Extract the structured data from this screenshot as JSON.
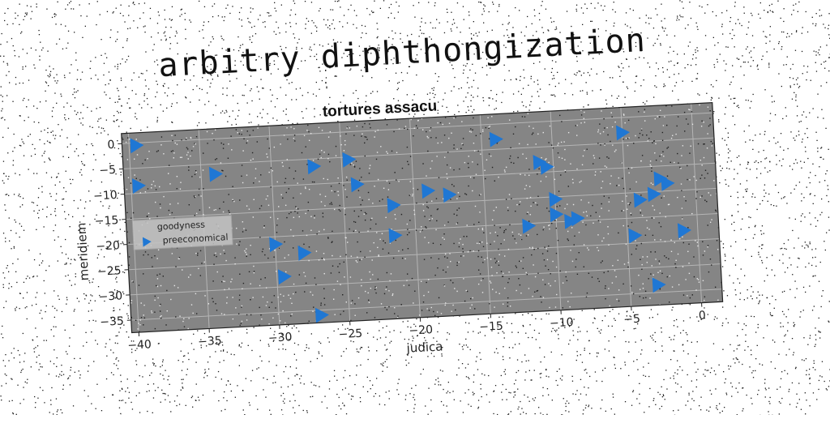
{
  "page": {
    "suptitle": "arbitry diphthongization"
  },
  "chart_data": {
    "type": "scatter",
    "title": "tortures assacu",
    "xlabel": "judica",
    "ylabel": "meridiem",
    "xlim": [
      -40.5,
      1.5
    ],
    "ylim": [
      -37.5,
      2
    ],
    "xticks": [
      -40,
      -35,
      -30,
      -25,
      -20,
      -15,
      -10,
      -5,
      0
    ],
    "yticks": [
      0,
      -5,
      -10,
      -15,
      -20,
      -25,
      -30,
      -35
    ],
    "xtick_labels": [
      "−40",
      "−35",
      "−30",
      "−25",
      "−20",
      "−15",
      "−10",
      "−5",
      "0"
    ],
    "ytick_labels": [
      "0",
      "−5",
      "−10",
      "−15",
      "−20",
      "−25",
      "−30",
      "−35"
    ],
    "grid": true,
    "legend_position": "center-left",
    "legend_entries": [
      "goodyness",
      "preeconomical"
    ],
    "marker": "triangle-right",
    "colors": {
      "marker": "#1f77d4",
      "axes_bg": "#858585",
      "grid": "#b5b5b5"
    },
    "series": [
      {
        "name": "preeconomical",
        "points": [
          {
            "x": -39.5,
            "y": -0.5
          },
          {
            "x": -39.5,
            "y": -8.5
          },
          {
            "x": -34,
            "y": -7
          },
          {
            "x": -30,
            "y": -21.5
          },
          {
            "x": -28,
            "y": -23.5
          },
          {
            "x": -29.5,
            "y": -28
          },
          {
            "x": -27,
            "y": -6.5
          },
          {
            "x": -27,
            "y": -36
          },
          {
            "x": -24.5,
            "y": -5.5
          },
          {
            "x": -24,
            "y": -10.5
          },
          {
            "x": -21.5,
            "y": -15
          },
          {
            "x": -21.5,
            "y": -21
          },
          {
            "x": -19,
            "y": -12.5
          },
          {
            "x": -17.5,
            "y": -13.5
          },
          {
            "x": -14,
            "y": -3
          },
          {
            "x": -12,
            "y": -20.5
          },
          {
            "x": -11,
            "y": -8
          },
          {
            "x": -10.5,
            "y": -9
          },
          {
            "x": -10,
            "y": -15.5
          },
          {
            "x": -10,
            "y": -18.5
          },
          {
            "x": -9,
            "y": -20
          },
          {
            "x": -8.5,
            "y": -19.5
          },
          {
            "x": -4.5,
            "y": -23.5
          },
          {
            "x": -5,
            "y": -3
          },
          {
            "x": -4,
            "y": -16.5
          },
          {
            "x": -3,
            "y": -15.5
          },
          {
            "x": -2.5,
            "y": -12.5
          },
          {
            "x": -2,
            "y": -13.5
          },
          {
            "x": -3,
            "y": -33.5
          },
          {
            "x": -1,
            "y": -23
          }
        ]
      }
    ]
  }
}
